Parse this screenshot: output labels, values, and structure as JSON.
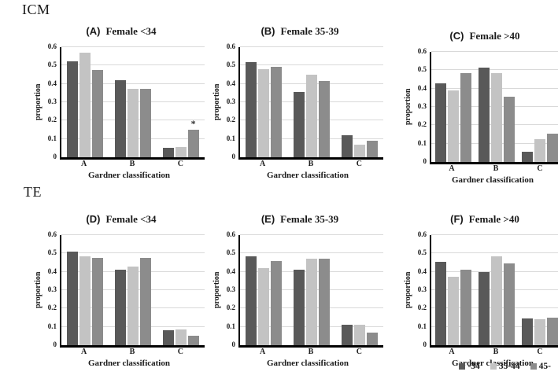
{
  "figure": {
    "section_labels": {
      "row1": "ICM",
      "row2": "TE"
    }
  },
  "colors": {
    "series": [
      "#595959",
      "#c3c3c3",
      "#8c8c8c"
    ],
    "gridline": "#d9d9d9",
    "axis": "#000000",
    "background": "#ffffff"
  },
  "legend": {
    "entries": [
      {
        "label": "-34",
        "color": "#595959"
      },
      {
        "label": "35-44",
        "color": "#c3c3c3"
      },
      {
        "label": "45-",
        "color": "#8c8c8c"
      }
    ]
  },
  "chart_data": {
    "type": "bar",
    "shared": {
      "categories": [
        "A",
        "B",
        "C"
      ],
      "xlabel": "Gardner classification",
      "ylabel": "proportion",
      "ylim": [
        0,
        0.6
      ],
      "yticks": [
        "0",
        "0.1",
        "0.2",
        "0.3",
        "0.4",
        "0.5",
        "0.6"
      ],
      "grid": true,
      "legend_position": "bottom-right",
      "series_names": [
        "-34",
        "35-44",
        "45-"
      ]
    },
    "charts": [
      {
        "panel": "(A)",
        "title": "Female <34",
        "section": "ICM",
        "series": [
          {
            "name": "-34",
            "values": [
              0.525,
              0.42,
              0.05
            ]
          },
          {
            "name": "35-44",
            "values": [
              0.57,
              0.375,
              0.055
            ]
          },
          {
            "name": "45-",
            "values": [
              0.475,
              0.375,
              0.15
            ]
          }
        ],
        "annotations": [
          {
            "category": "C",
            "series": "45-",
            "text": "*"
          }
        ]
      },
      {
        "panel": "(B)",
        "title": "Female 35-39",
        "section": "ICM",
        "series": [
          {
            "name": "-34",
            "values": [
              0.52,
              0.355,
              0.12
            ]
          },
          {
            "name": "35-44",
            "values": [
              0.48,
              0.45,
              0.07
            ]
          },
          {
            "name": "45-",
            "values": [
              0.495,
              0.415,
              0.09
            ]
          }
        ],
        "annotations": []
      },
      {
        "panel": "(C)",
        "title": "Female >40",
        "section": "ICM",
        "series": [
          {
            "name": "-34",
            "values": [
              0.43,
              0.515,
              0.055
            ]
          },
          {
            "name": "35-44",
            "values": [
              0.39,
              0.485,
              0.125
            ]
          },
          {
            "name": "45-",
            "values": [
              0.485,
              0.355,
              0.155
            ]
          }
        ],
        "annotations": []
      },
      {
        "panel": "(D)",
        "title": "Female <34",
        "section": "TE",
        "series": [
          {
            "name": "-34",
            "values": [
              0.51,
              0.41,
              0.08
            ]
          },
          {
            "name": "35-44",
            "values": [
              0.485,
              0.43,
              0.085
            ]
          },
          {
            "name": "45-",
            "values": [
              0.475,
              0.475,
              0.05
            ]
          }
        ],
        "annotations": []
      },
      {
        "panel": "(E)",
        "title": "Female 35-39",
        "section": "TE",
        "series": [
          {
            "name": "-34",
            "values": [
              0.485,
              0.41,
              0.11
            ]
          },
          {
            "name": "35-44",
            "values": [
              0.42,
              0.47,
              0.113
            ]
          },
          {
            "name": "45-",
            "values": [
              0.46,
              0.47,
              0.07
            ]
          }
        ],
        "annotations": []
      },
      {
        "panel": "(F)",
        "title": "Female >40",
        "section": "TE",
        "series": [
          {
            "name": "-34",
            "values": [
              0.455,
              0.4,
              0.145
            ]
          },
          {
            "name": "35-44",
            "values": [
              0.375,
              0.485,
              0.14
            ]
          },
          {
            "name": "45-",
            "values": [
              0.41,
              0.445,
              0.15
            ]
          }
        ],
        "annotations": []
      }
    ]
  }
}
